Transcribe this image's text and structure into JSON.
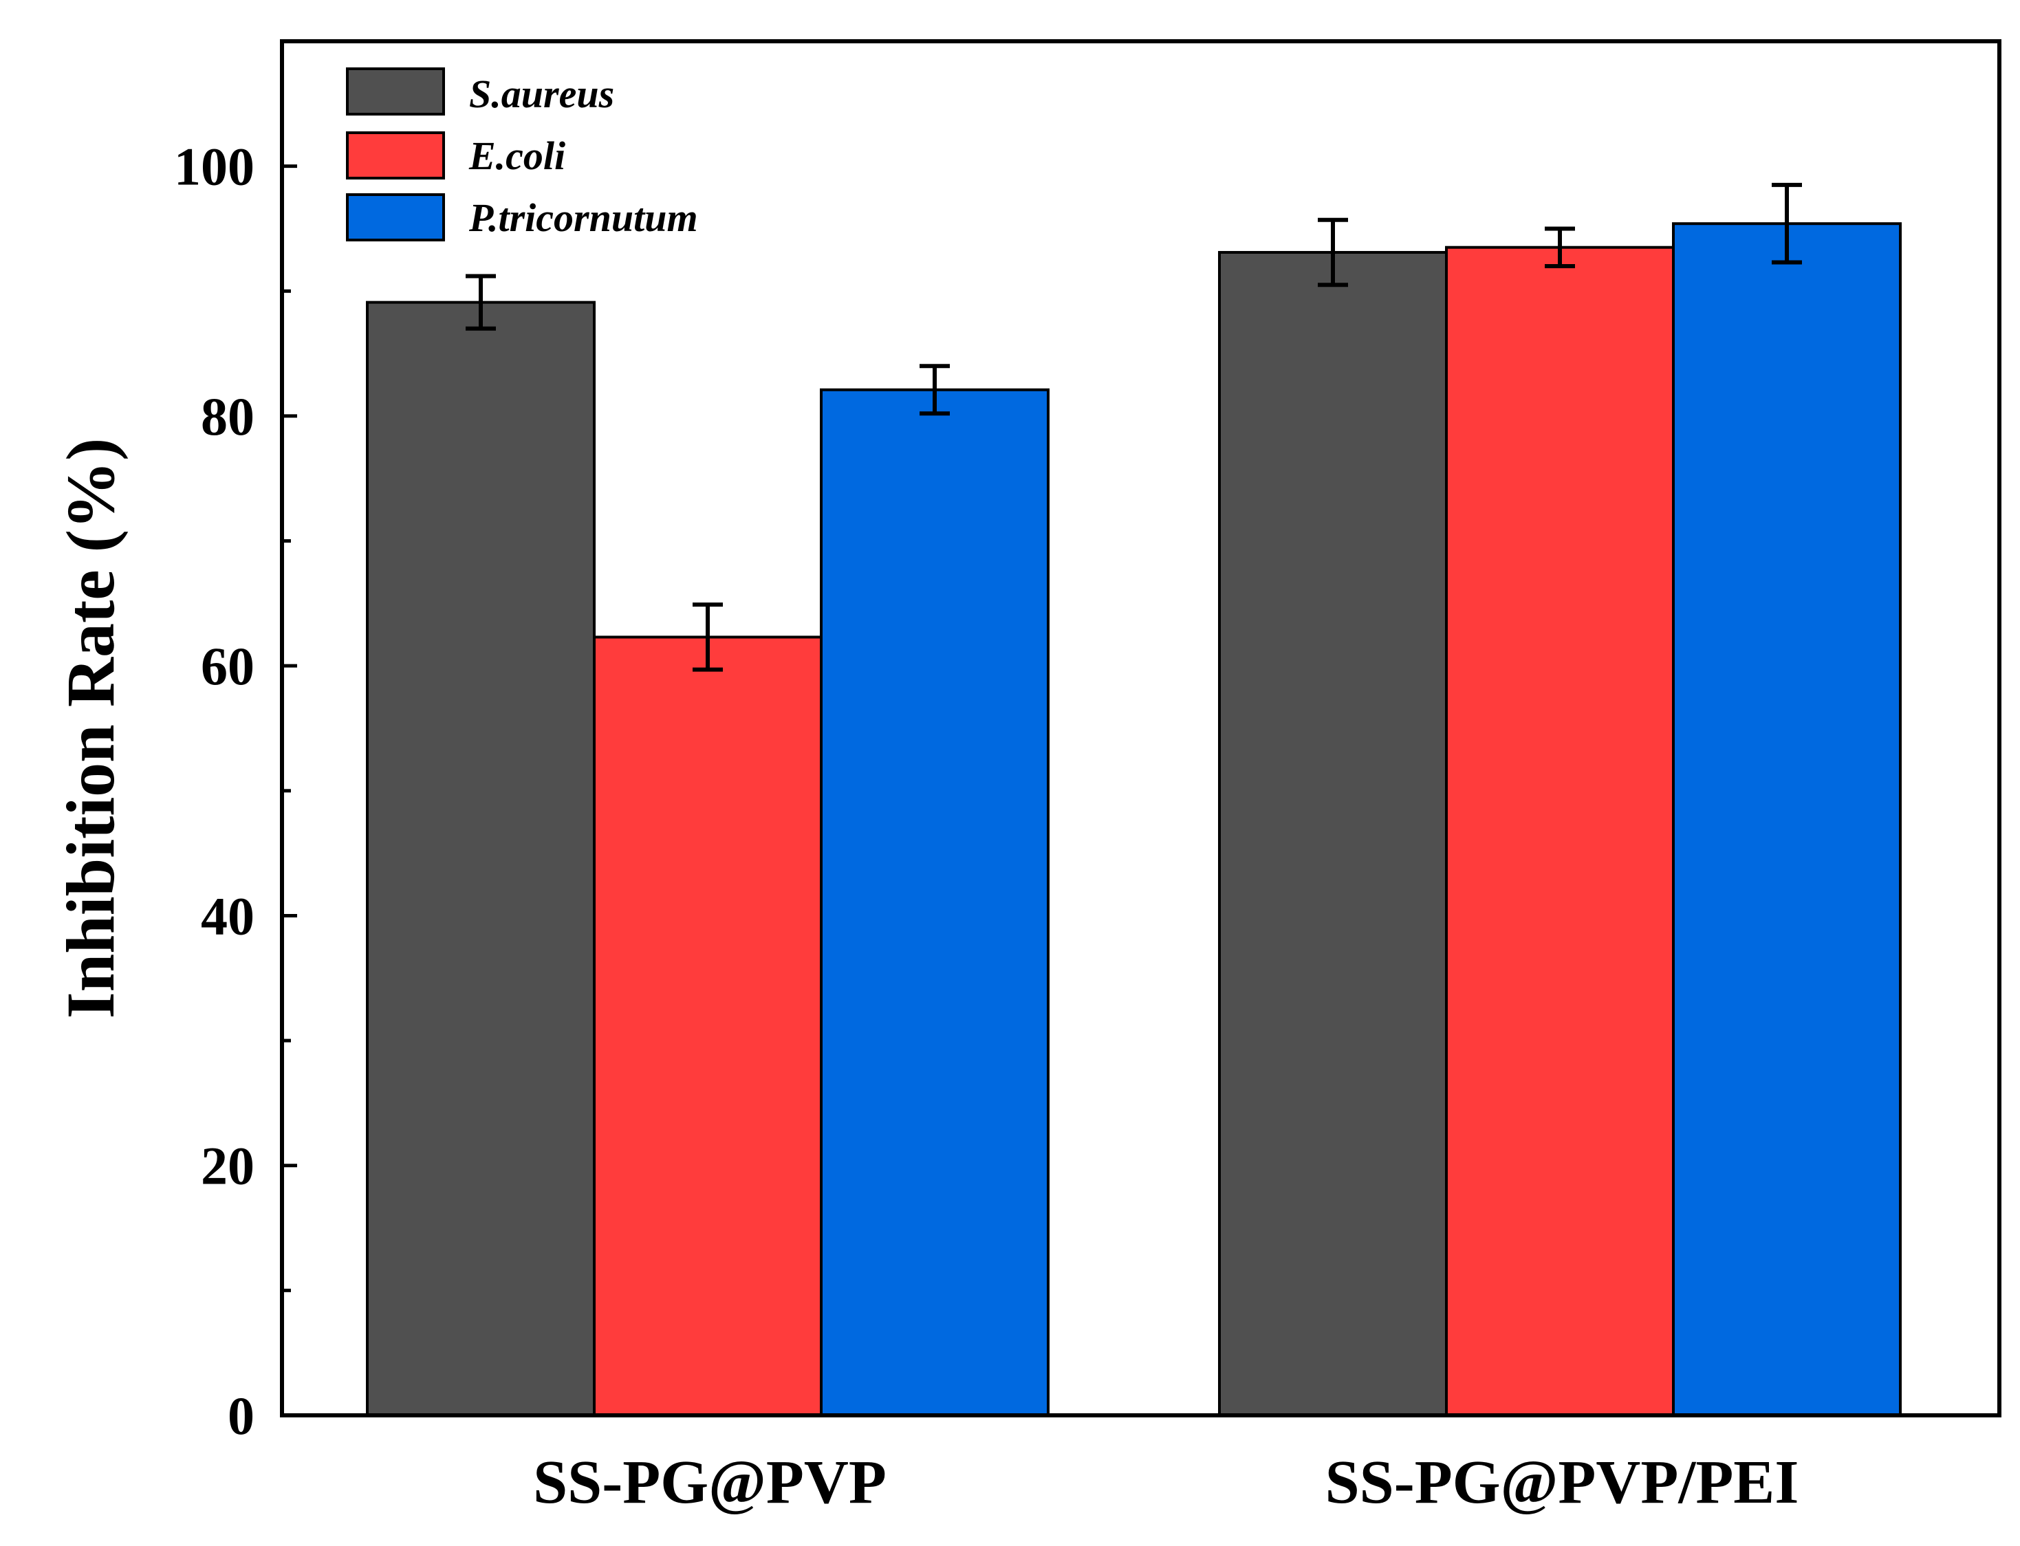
{
  "chart_data": {
    "type": "bar",
    "title": "",
    "xlabel": "",
    "ylabel": "Inhibition Rate (%)",
    "ylim": [
      0,
      110
    ],
    "yticks": [
      "0",
      "20",
      "40",
      "60",
      "80",
      "100"
    ],
    "categories": [
      "SS-PG@PVP",
      "SS-PG@PVP/PEI"
    ],
    "series": [
      {
        "name": "S.aureus",
        "color": "#505050",
        "values": [
          89.1,
          93.1
        ],
        "errors": [
          2.1,
          2.6
        ]
      },
      {
        "name": "E.coli",
        "color": "#ff3c3c",
        "values": [
          62.3,
          93.5
        ],
        "errors": [
          2.6,
          1.5
        ]
      },
      {
        "name": "P.tricornutum",
        "color": "#0069e0",
        "values": [
          82.1,
          95.4
        ],
        "errors": [
          1.9,
          3.1
        ]
      }
    ],
    "legend_position": "top-left",
    "grid": false
  }
}
